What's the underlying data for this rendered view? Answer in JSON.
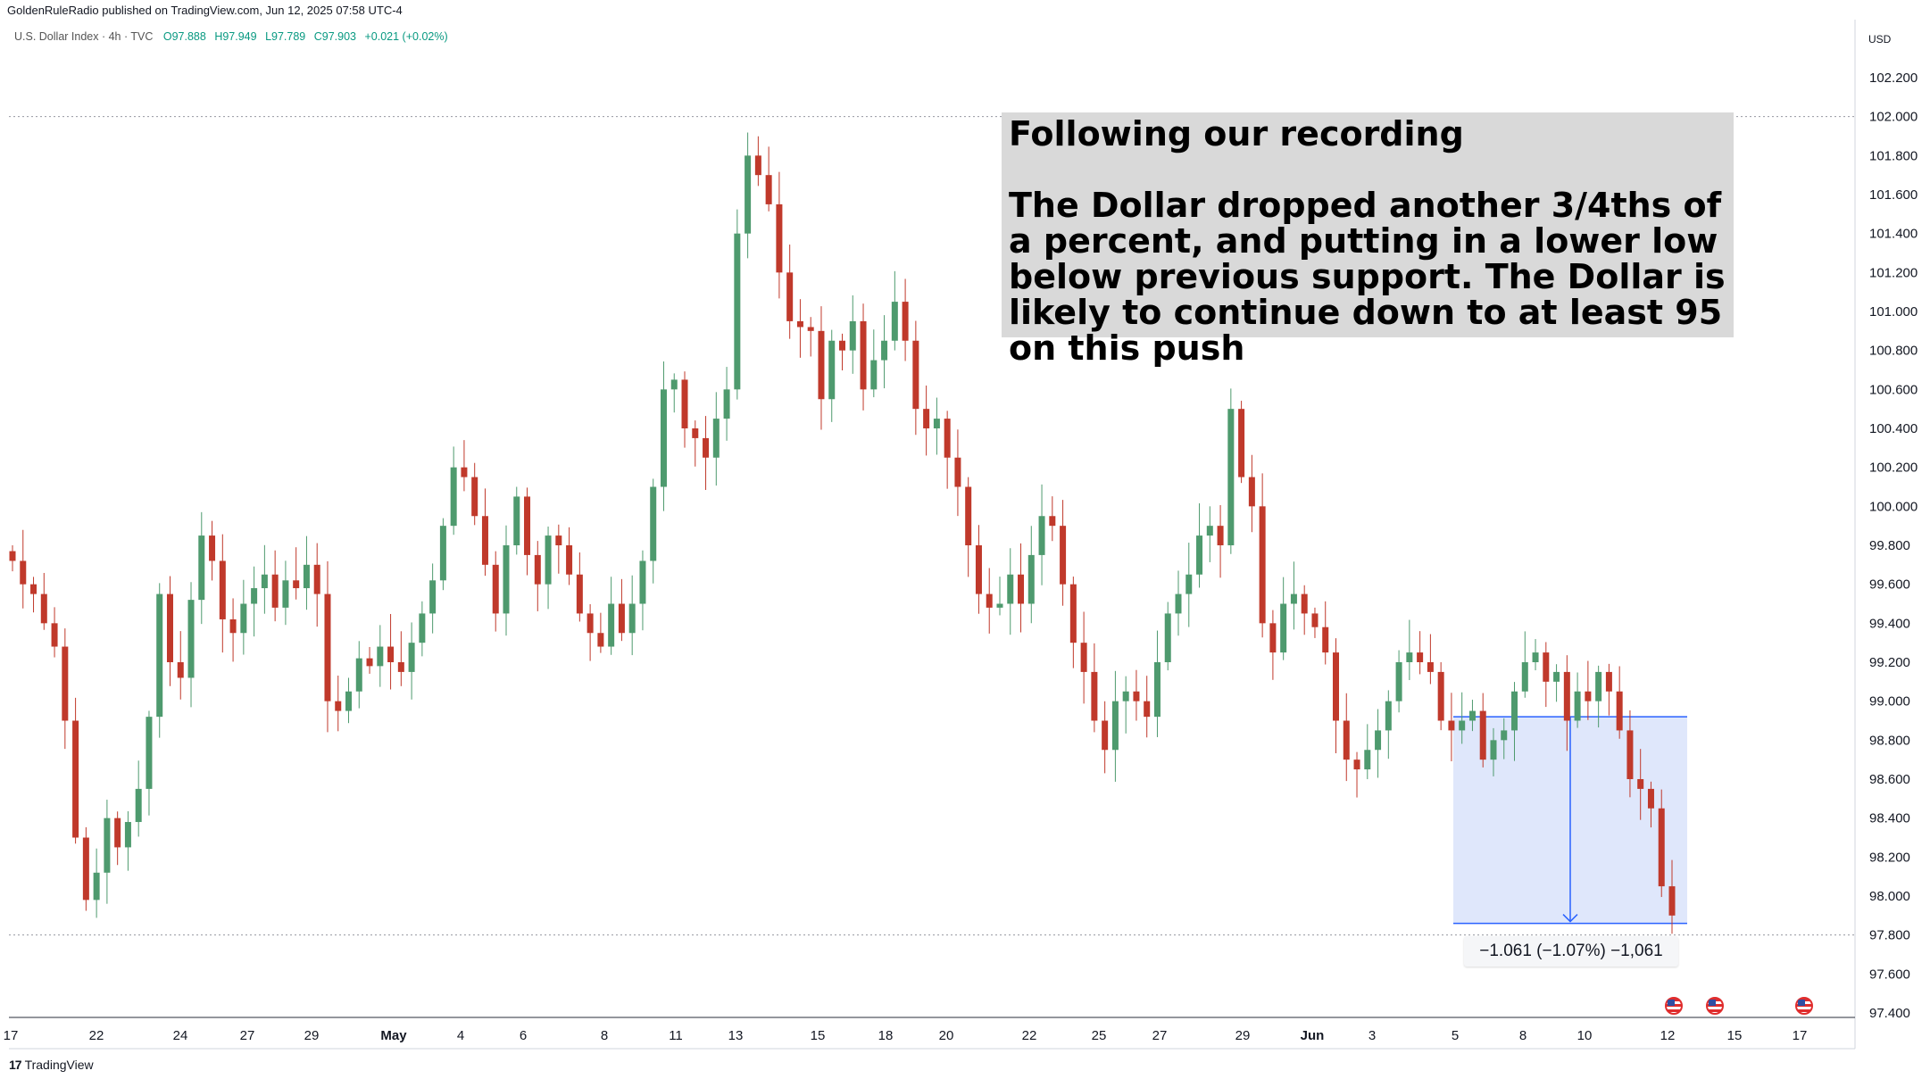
{
  "header": {
    "published": "GoldenRuleRadio published on TradingView.com, Jun 12, 2025 07:58 UTC-4"
  },
  "symbol": {
    "name": "U.S. Dollar Index · 4h · TVC",
    "open": "O97.888",
    "high": "H97.949",
    "low": "L97.789",
    "close": "C97.903",
    "change": "+0.021 (+0.02%)"
  },
  "currency": "USD",
  "annotation": {
    "text": "Following our recording\n\nThe Dollar dropped another 3/4ths of a percent, and putting in a lower low below previous support.  The Dollar is likely to continue down to at least 95 on this push"
  },
  "measure": {
    "label": "−1.061 (−1.07%) −1,061",
    "from": 98.92,
    "to": 97.86
  },
  "footer": {
    "logo": "TradingView",
    "logo_mark": "17"
  },
  "colors": {
    "up": "#4e9a6e",
    "down": "#c0392b",
    "measure_fill": "#dbe4fb",
    "measure_line": "#2962ff"
  },
  "chart_data": {
    "type": "candlestick",
    "title": "U.S. Dollar Index · 4h · TVC",
    "ylim": [
      97.4,
      102.2
    ],
    "y_ticks": [
      "102.200",
      "102.000",
      "101.800",
      "101.600",
      "101.400",
      "101.200",
      "101.000",
      "100.800",
      "100.600",
      "100.400",
      "100.200",
      "100.000",
      "99.800",
      "99.600",
      "99.400",
      "99.200",
      "99.000",
      "98.800",
      "98.600",
      "98.400",
      "98.200",
      "98.000",
      "97.800",
      "97.600",
      "97.400"
    ],
    "x_ticks": [
      "17",
      "22",
      "24",
      "27",
      "29",
      "May",
      "4",
      "6",
      "8",
      "11",
      "13",
      "15",
      "18",
      "20",
      "22",
      "25",
      "27",
      "29",
      "Jun",
      "3",
      "5",
      "8",
      "10",
      "12",
      "15",
      "17"
    ],
    "hlines": [
      102.0,
      97.8
    ],
    "closes": [
      99.72,
      99.6,
      99.55,
      99.4,
      99.28,
      98.9,
      98.3,
      97.98,
      98.12,
      98.4,
      98.25,
      98.38,
      98.55,
      98.92,
      99.55,
      99.2,
      99.12,
      99.52,
      99.85,
      99.72,
      99.42,
      99.35,
      99.5,
      99.58,
      99.65,
      99.48,
      99.62,
      99.58,
      99.7,
      99.55,
      99.0,
      98.95,
      99.05,
      99.22,
      99.18,
      99.28,
      99.2,
      99.15,
      99.3,
      99.45,
      99.62,
      99.9,
      100.2,
      100.15,
      99.95,
      99.7,
      99.45,
      99.8,
      100.05,
      99.75,
      99.6,
      99.85,
      99.8,
      99.65,
      99.45,
      99.35,
      99.28,
      99.5,
      99.35,
      99.5,
      99.72,
      100.1,
      100.6,
      100.65,
      100.4,
      100.35,
      100.25,
      100.45,
      100.6,
      101.4,
      101.8,
      101.7,
      101.55,
      101.2,
      100.95,
      100.92,
      100.9,
      100.55,
      100.85,
      100.8,
      100.95,
      100.6,
      100.75,
      100.85,
      101.05,
      100.85,
      100.5,
      100.4,
      100.45,
      100.25,
      100.1,
      99.8,
      99.55,
      99.48,
      99.5,
      99.65,
      99.5,
      99.75,
      99.95,
      99.9,
      99.6,
      99.3,
      99.15,
      98.9,
      98.75,
      99.0,
      99.05,
      99.0,
      98.92,
      99.2,
      99.45,
      99.55,
      99.65,
      99.85,
      99.9,
      99.8,
      100.5,
      100.15,
      100.0,
      99.4,
      99.25,
      99.5,
      99.55,
      99.45,
      99.38,
      99.25,
      98.9,
      98.7,
      98.65,
      98.75,
      98.85,
      99.0,
      99.2,
      99.25,
      99.2,
      99.15,
      98.9,
      98.85,
      98.9,
      98.95,
      98.7,
      98.8,
      98.85,
      99.05,
      99.2,
      99.25,
      99.1,
      99.15,
      98.9,
      99.05,
      99.0,
      99.15,
      99.05,
      98.85,
      98.6,
      98.55,
      98.45,
      98.05,
      97.9
    ]
  }
}
